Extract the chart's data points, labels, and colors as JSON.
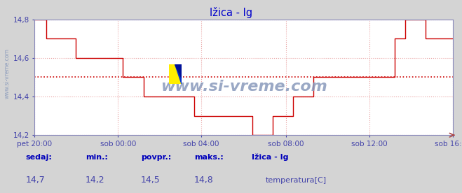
{
  "title": "Ižica - Ig",
  "title_color": "#0000cc",
  "bg_color": "#d4d4d4",
  "plot_bg_color": "#ffffff",
  "grid_color": "#e8a0a0",
  "spine_color": "#8888bb",
  "line_color": "#cc0000",
  "avg_line_color": "#cc0000",
  "ylim": [
    14.2,
    14.8
  ],
  "yticks": [
    14.2,
    14.4,
    14.6,
    14.8
  ],
  "tick_color": "#4444aa",
  "watermark_text": "www.si-vreme.com",
  "watermark_color": "#aaaacc",
  "left_rotated_text": "www.si-vreme.com",
  "x_labels": [
    "pet 20:00",
    "sob 00:00",
    "sob 04:00",
    "sob 08:00",
    "sob 12:00",
    "sob 16:00"
  ],
  "avg_value": 14.5,
  "sedaj_label": "sedaj:",
  "min_label": "min.:",
  "povpr_label": "povpr.:",
  "maks_label": "maks.:",
  "sedaj_val": "14,7",
  "min_val": "14,2",
  "povpr_val": "14,5",
  "maks_val": "14,8",
  "station": "Ižica - Ig",
  "legend_label": "temperatura[C]",
  "footer_label_color": "#0000bb",
  "footer_value_color": "#4444aa",
  "temperature_data": [
    14.8,
    14.8,
    14.8,
    14.8,
    14.8,
    14.8,
    14.8,
    14.7,
    14.7,
    14.7,
    14.7,
    14.7,
    14.7,
    14.7,
    14.7,
    14.7,
    14.7,
    14.7,
    14.7,
    14.7,
    14.7,
    14.7,
    14.7,
    14.7,
    14.6,
    14.6,
    14.6,
    14.6,
    14.6,
    14.6,
    14.6,
    14.6,
    14.6,
    14.6,
    14.6,
    14.6,
    14.6,
    14.6,
    14.6,
    14.6,
    14.6,
    14.6,
    14.6,
    14.6,
    14.6,
    14.6,
    14.6,
    14.6,
    14.6,
    14.6,
    14.6,
    14.6,
    14.5,
    14.5,
    14.5,
    14.5,
    14.5,
    14.5,
    14.5,
    14.5,
    14.5,
    14.5,
    14.5,
    14.5,
    14.4,
    14.4,
    14.4,
    14.4,
    14.4,
    14.4,
    14.4,
    14.4,
    14.4,
    14.4,
    14.4,
    14.4,
    14.4,
    14.4,
    14.4,
    14.4,
    14.4,
    14.4,
    14.4,
    14.4,
    14.4,
    14.4,
    14.4,
    14.4,
    14.4,
    14.4,
    14.4,
    14.4,
    14.4,
    14.4,
    14.3,
    14.3,
    14.3,
    14.3,
    14.3,
    14.3,
    14.3,
    14.3,
    14.3,
    14.3,
    14.3,
    14.3,
    14.3,
    14.3,
    14.3,
    14.3,
    14.3,
    14.3,
    14.3,
    14.3,
    14.3,
    14.3,
    14.3,
    14.3,
    14.3,
    14.3,
    14.3,
    14.3,
    14.3,
    14.3,
    14.3,
    14.3,
    14.3,
    14.3,
    14.2,
    14.2,
    14.2,
    14.2,
    14.2,
    14.2,
    14.2,
    14.2,
    14.2,
    14.2,
    14.2,
    14.2,
    14.3,
    14.3,
    14.3,
    14.3,
    14.3,
    14.3,
    14.3,
    14.3,
    14.3,
    14.3,
    14.3,
    14.3,
    14.4,
    14.4,
    14.4,
    14.4,
    14.4,
    14.4,
    14.4,
    14.4,
    14.4,
    14.4,
    14.4,
    14.4,
    14.5,
    14.5,
    14.5,
    14.5,
    14.5,
    14.5,
    14.5,
    14.5,
    14.5,
    14.5,
    14.5,
    14.5,
    14.5,
    14.5,
    14.5,
    14.5,
    14.5,
    14.5,
    14.5,
    14.5,
    14.5,
    14.5,
    14.5,
    14.5,
    14.5,
    14.5,
    14.5,
    14.5,
    14.5,
    14.5,
    14.5,
    14.5,
    14.5,
    14.5,
    14.5,
    14.5,
    14.5,
    14.5,
    14.5,
    14.5,
    14.5,
    14.5,
    14.5,
    14.5,
    14.5,
    14.5,
    14.5,
    14.5,
    14.7,
    14.7,
    14.7,
    14.7,
    14.7,
    14.7,
    14.8,
    14.8,
    14.8,
    14.8,
    14.8,
    14.8,
    14.8,
    14.8,
    14.8,
    14.8,
    14.8,
    14.8,
    14.7,
    14.7,
    14.7,
    14.7,
    14.7,
    14.7,
    14.7,
    14.7,
    14.7,
    14.7,
    14.7,
    14.7,
    14.7,
    14.7,
    14.7,
    14.7,
    14.7
  ]
}
